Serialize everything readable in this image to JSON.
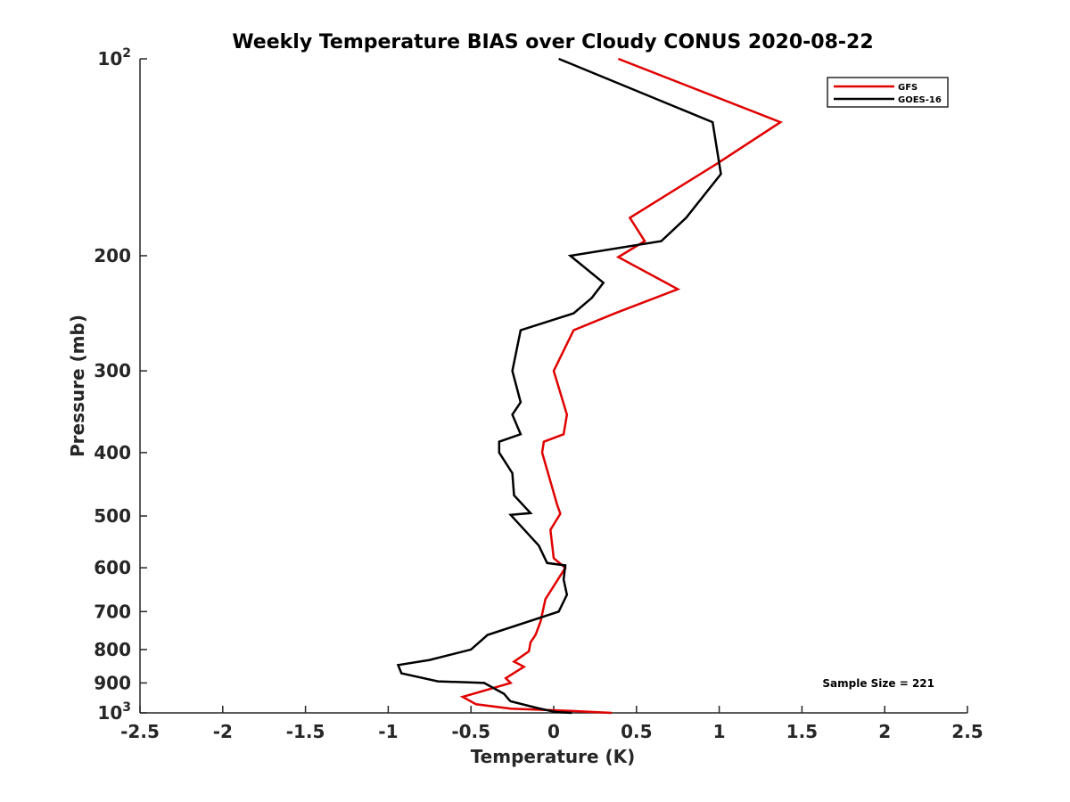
{
  "chart_data": {
    "type": "line",
    "title": "Weekly Temperature BIAS over Cloudy CONUS 2020-08-22",
    "xlabel": "Temperature (K)",
    "ylabel": "Pressure (mb)",
    "xlim": [
      -2.5,
      2.5
    ],
    "ylim": [
      100,
      1000
    ],
    "y_scale": "log",
    "y_direction": "reversed",
    "x_ticks": [
      "-2.5",
      "-2",
      "-1.5",
      "-1",
      "-0.5",
      "0",
      "0.5",
      "1",
      "1.5",
      "2",
      "2.5"
    ],
    "y_ticks": [
      {
        "value": 100,
        "base": "10",
        "exp": "2"
      },
      {
        "value": 200,
        "label": "200"
      },
      {
        "value": 300,
        "label": "300"
      },
      {
        "value": 400,
        "label": "400"
      },
      {
        "value": 500,
        "label": "500"
      },
      {
        "value": 600,
        "label": "600"
      },
      {
        "value": 700,
        "label": "700"
      },
      {
        "value": 800,
        "label": "800"
      },
      {
        "value": 900,
        "label": "900"
      },
      {
        "value": 1000,
        "base": "10",
        "exp": "3"
      }
    ],
    "grid": false,
    "legend_position": "top-right",
    "series": [
      {
        "name": "GFS",
        "color": "#e00000",
        "points": [
          [
            0.39,
            100
          ],
          [
            1.37,
            125
          ],
          [
            0.98,
            145
          ],
          [
            0.46,
            175
          ],
          [
            0.55,
            190
          ],
          [
            0.39,
            201
          ],
          [
            0.75,
            225
          ],
          [
            0.37,
            245
          ],
          [
            0.12,
            260
          ],
          [
            0.0,
            300
          ],
          [
            0.08,
            350
          ],
          [
            0.06,
            375
          ],
          [
            -0.06,
            385
          ],
          [
            -0.07,
            400
          ],
          [
            0.02,
            480
          ],
          [
            0.04,
            496
          ],
          [
            -0.02,
            525
          ],
          [
            0.0,
            580
          ],
          [
            0.07,
            600
          ],
          [
            0.0,
            640
          ],
          [
            -0.05,
            670
          ],
          [
            -0.08,
            725
          ],
          [
            -0.11,
            760
          ],
          [
            -0.14,
            780
          ],
          [
            -0.15,
            805
          ],
          [
            -0.24,
            835
          ],
          [
            -0.18,
            850
          ],
          [
            -0.29,
            885
          ],
          [
            -0.26,
            900
          ],
          [
            -0.55,
            945
          ],
          [
            -0.47,
            970
          ],
          [
            -0.26,
            985
          ],
          [
            0.1,
            993
          ],
          [
            0.35,
            1000
          ]
        ]
      },
      {
        "name": "GOES-16",
        "color": "#000000",
        "points": [
          [
            0.03,
            100
          ],
          [
            0.96,
            125
          ],
          [
            1.01,
            150
          ],
          [
            0.8,
            175
          ],
          [
            0.65,
            190
          ],
          [
            0.1,
            200
          ],
          [
            0.3,
            220
          ],
          [
            0.23,
            232
          ],
          [
            0.12,
            245
          ],
          [
            -0.2,
            260
          ],
          [
            -0.25,
            300
          ],
          [
            -0.2,
            335
          ],
          [
            -0.25,
            350
          ],
          [
            -0.2,
            375
          ],
          [
            -0.33,
            385
          ],
          [
            -0.33,
            400
          ],
          [
            -0.25,
            430
          ],
          [
            -0.24,
            465
          ],
          [
            -0.14,
            495
          ],
          [
            -0.26,
            498
          ],
          [
            -0.09,
            555
          ],
          [
            -0.04,
            590
          ],
          [
            0.07,
            595
          ],
          [
            0.06,
            625
          ],
          [
            0.08,
            660
          ],
          [
            0.03,
            700
          ],
          [
            -0.4,
            760
          ],
          [
            -0.5,
            800
          ],
          [
            -0.75,
            830
          ],
          [
            -0.94,
            845
          ],
          [
            -0.92,
            870
          ],
          [
            -0.7,
            895
          ],
          [
            -0.42,
            900
          ],
          [
            -0.3,
            935
          ],
          [
            -0.27,
            955
          ],
          [
            -0.26,
            960
          ],
          [
            -0.1,
            983
          ],
          [
            0.01,
            997
          ],
          [
            0.11,
            1000
          ]
        ]
      }
    ],
    "annotation": "Sample Size = 221"
  }
}
